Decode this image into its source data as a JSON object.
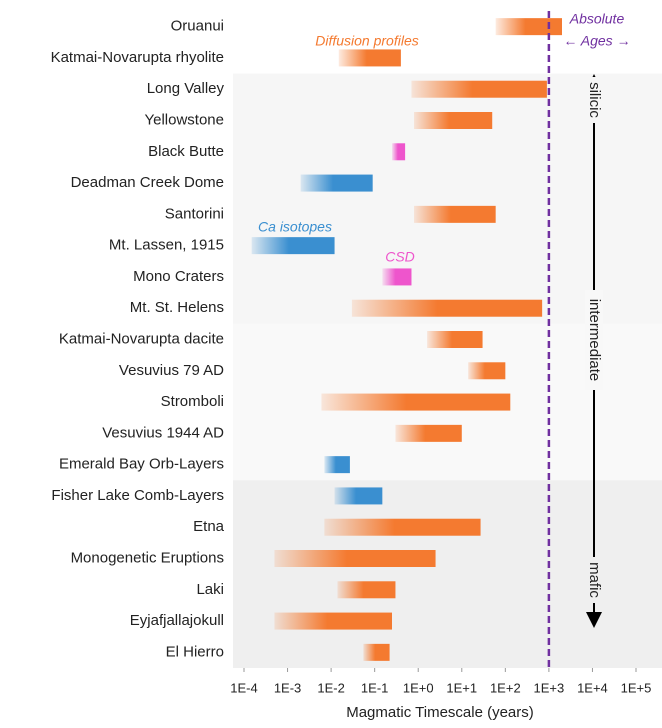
{
  "chart_data": {
    "type": "range_bar",
    "x_label": "Magmatic Timescale (years)",
    "xscale": "log",
    "xlim": [
      0.0001,
      100000
    ],
    "xticks": [
      {
        "value": 0.0001,
        "label": "1E-4"
      },
      {
        "value": 0.001,
        "label": "1E-3"
      },
      {
        "value": 0.01,
        "label": "1E-2"
      },
      {
        "value": 0.1,
        "label": "1E-1"
      },
      {
        "value": 1,
        "label": "1E+0"
      },
      {
        "value": 10,
        "label": "1E+1"
      },
      {
        "value": 100,
        "label": "1E+2"
      },
      {
        "value": 1000,
        "label": "1E+3"
      },
      {
        "value": 10000,
        "label": "1E+4"
      },
      {
        "value": 100000,
        "label": "1E+5"
      }
    ],
    "categories": [
      "Oruanui",
      "Katmai-Novarupta rhyolite",
      "Long Valley",
      "Yellowstone",
      "Black Butte",
      "Deadman Creek Dome",
      "Santorini",
      "Mt. Lassen, 1915",
      "Mono Craters",
      "Mt. St. Helens",
      "Katmai-Novarupta dacite",
      "Vesuvius 79 AD",
      "Stromboli",
      "Vesuvius 1944 AD",
      "Emerald Bay Orb-Layers",
      "Fisher Lake Comb-Layers",
      "Etna",
      "Monogenetic Eruptions",
      "Laki",
      "Eyjafjallajokull",
      "El Hierro"
    ],
    "series": [
      {
        "name": "Diffusion profiles",
        "color": "#f47a30",
        "start": [
          60,
          0.015,
          0.7,
          0.8,
          null,
          null,
          0.8,
          null,
          null,
          0.03,
          1.6,
          14,
          0.006,
          0.3,
          null,
          null,
          0.007,
          0.0005,
          0.014,
          0.0005,
          0.055
        ],
        "end": [
          2000,
          0.4,
          900,
          50,
          null,
          null,
          60,
          null,
          null,
          700,
          30,
          100,
          130,
          10,
          null,
          null,
          27,
          2.5,
          0.3,
          0.25,
          0.22
        ]
      },
      {
        "name": "Ca isotopes",
        "color": "#3a8fd0",
        "start": [
          null,
          null,
          null,
          null,
          null,
          0.002,
          null,
          0.00015,
          null,
          null,
          null,
          null,
          null,
          null,
          0.007,
          0.012,
          null,
          null,
          null,
          null,
          null
        ],
        "end": [
          null,
          null,
          null,
          null,
          null,
          0.09,
          null,
          0.012,
          null,
          null,
          null,
          null,
          null,
          null,
          0.027,
          0.15,
          null,
          null,
          null,
          null,
          null
        ]
      },
      {
        "name": "CSD",
        "color": "#ee55cc",
        "start": [
          null,
          null,
          null,
          null,
          0.25,
          null,
          null,
          null,
          0.15,
          null,
          null,
          null,
          null,
          null,
          null,
          null,
          null,
          null,
          null,
          null,
          null
        ],
        "end": [
          null,
          null,
          null,
          null,
          0.5,
          null,
          null,
          null,
          0.7,
          null,
          null,
          null,
          null,
          null,
          null,
          null,
          null,
          null,
          null,
          null,
          null
        ]
      }
    ],
    "reference_line": 1000,
    "reference_label": [
      "Absolute",
      "← Ages →"
    ],
    "reference_color": "#7030a0",
    "groups": [
      "silicic",
      "intermediate",
      "mafic"
    ]
  }
}
